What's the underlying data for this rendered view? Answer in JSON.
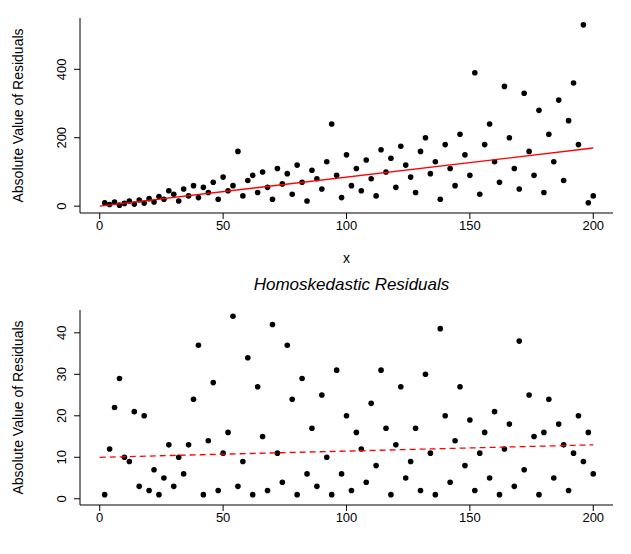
{
  "chart_data": [
    {
      "type": "scatter",
      "xlabel": "x",
      "ylabel": "Absolute Value of Residuals",
      "xlim": [
        -8,
        208
      ],
      "ylim": [
        -20,
        550
      ],
      "xticks": [
        0,
        50,
        100,
        150,
        200
      ],
      "yticks": [
        0,
        200,
        400
      ],
      "grid": false,
      "series": [
        {
          "type": "scatter",
          "color": "#000000",
          "marker": "circle",
          "x": [
            2,
            4,
            6,
            8,
            10,
            12,
            14,
            16,
            18,
            20,
            22,
            24,
            26,
            28,
            30,
            32,
            34,
            36,
            38,
            40,
            42,
            44,
            46,
            48,
            50,
            52,
            54,
            56,
            58,
            60,
            62,
            64,
            66,
            68,
            70,
            72,
            74,
            76,
            78,
            80,
            82,
            84,
            86,
            88,
            90,
            92,
            94,
            96,
            98,
            100,
            102,
            104,
            106,
            108,
            110,
            112,
            114,
            116,
            118,
            120,
            122,
            124,
            126,
            128,
            130,
            132,
            134,
            136,
            138,
            140,
            142,
            144,
            146,
            148,
            150,
            152,
            154,
            156,
            158,
            160,
            162,
            164,
            166,
            168,
            170,
            172,
            174,
            176,
            178,
            180,
            182,
            184,
            186,
            188,
            190,
            192,
            194,
            196,
            198,
            200
          ],
          "values": [
            10,
            5,
            12,
            3,
            8,
            15,
            6,
            18,
            9,
            22,
            12,
            28,
            20,
            45,
            35,
            15,
            50,
            30,
            60,
            25,
            55,
            40,
            70,
            20,
            85,
            45,
            60,
            160,
            30,
            75,
            90,
            40,
            100,
            55,
            20,
            110,
            65,
            95,
            35,
            120,
            70,
            15,
            105,
            80,
            50,
            130,
            240,
            90,
            25,
            150,
            60,
            110,
            45,
            135,
            80,
            30,
            165,
            100,
            140,
            55,
            175,
            120,
            85,
            40,
            160,
            200,
            95,
            130,
            20,
            180,
            110,
            60,
            210,
            150,
            90,
            390,
            35,
            180,
            240,
            130,
            70,
            350,
            200,
            110,
            50,
            330,
            160,
            90,
            280,
            40,
            210,
            130,
            310,
            75,
            250,
            360,
            180,
            530,
            10,
            30
          ]
        },
        {
          "type": "line",
          "color": "#ff0000",
          "line_style": "solid",
          "x": [
            0,
            200
          ],
          "values": [
            0,
            170
          ]
        }
      ]
    },
    {
      "type": "scatter",
      "title": "Homoskedastic Residuals",
      "ylabel": "Absolute Value of Residuals",
      "xlim": [
        -8,
        208
      ],
      "ylim": [
        -1.5,
        45.5
      ],
      "xticks": [
        0,
        50,
        100,
        150,
        200
      ],
      "yticks": [
        0,
        10,
        20,
        30,
        40
      ],
      "grid": false,
      "series": [
        {
          "type": "scatter",
          "color": "#000000",
          "marker": "circle",
          "x": [
            2,
            4,
            6,
            8,
            10,
            12,
            14,
            16,
            18,
            20,
            22,
            24,
            26,
            28,
            30,
            32,
            34,
            36,
            38,
            40,
            42,
            44,
            46,
            48,
            50,
            52,
            54,
            56,
            58,
            60,
            62,
            64,
            66,
            68,
            70,
            72,
            74,
            76,
            78,
            80,
            82,
            84,
            86,
            88,
            90,
            92,
            94,
            96,
            98,
            100,
            102,
            104,
            106,
            108,
            110,
            112,
            114,
            116,
            118,
            120,
            122,
            124,
            126,
            128,
            130,
            132,
            134,
            136,
            138,
            140,
            142,
            144,
            146,
            148,
            150,
            152,
            154,
            156,
            158,
            160,
            162,
            164,
            166,
            168,
            170,
            172,
            174,
            176,
            178,
            180,
            182,
            184,
            186,
            188,
            190,
            192,
            194,
            196,
            198,
            200
          ],
          "values": [
            1,
            12,
            22,
            29,
            10,
            9,
            21,
            3,
            20,
            2,
            7,
            1,
            5,
            13,
            3,
            10,
            6,
            13,
            24,
            37,
            1,
            14,
            28,
            2,
            11,
            16,
            44,
            3,
            9,
            34,
            1,
            27,
            15,
            2,
            42,
            11,
            4,
            37,
            24,
            1,
            29,
            6,
            17,
            3,
            25,
            10,
            1,
            31,
            6,
            20,
            2,
            16,
            12,
            4,
            23,
            8,
            31,
            17,
            1,
            13,
            27,
            5,
            9,
            17,
            2,
            30,
            11,
            1,
            41,
            20,
            4,
            14,
            27,
            8,
            19,
            2,
            11,
            16,
            5,
            21,
            1,
            12,
            18,
            3,
            38,
            7,
            25,
            15,
            1,
            16,
            24,
            5,
            18,
            13,
            2,
            11,
            20,
            9,
            16,
            6
          ]
        },
        {
          "type": "line",
          "color": "#ff0000",
          "line_style": "dashed",
          "x": [
            0,
            200
          ],
          "values": [
            10,
            13
          ]
        }
      ]
    }
  ]
}
